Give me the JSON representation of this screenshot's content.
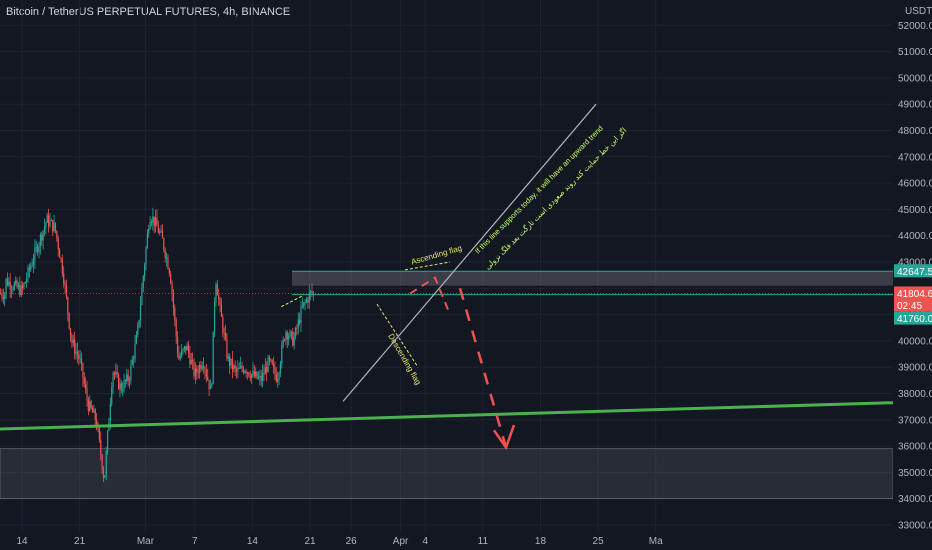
{
  "chart_data": {
    "type": "candlestick",
    "title": "Bitcoin / TetherUS PERPETUAL FUTURES, 4h, BINANCE",
    "currency": "USDT",
    "y_ticks": [
      "52000.0",
      "51000.0",
      "50000.0",
      "49000.0",
      "48000.0",
      "47000.0",
      "46000.0",
      "45000.0",
      "44000.0",
      "43000.0",
      "42000.0",
      "41000.0",
      "40000.0",
      "39000.0",
      "38000.0",
      "37000.0",
      "36000.0",
      "35000.0",
      "34000.0",
      "33000.0"
    ],
    "x_ticks": [
      "14",
      "21",
      "Mar",
      "7",
      "14",
      "21",
      "26",
      "Apr",
      "4",
      "11",
      "18",
      "25",
      "Ma"
    ],
    "ylim": [
      33000,
      52500
    ],
    "price_labels": {
      "upper_zone": "42647.5",
      "current": "41804.6",
      "countdown": "02:45",
      "lower_zone": "41760.0"
    },
    "annotations": {
      "ascending_flag": "Ascending flag",
      "descending_flag": "Descending flag",
      "note_line1": "If this line supports today, it will have an upward trend",
      "note_line2": "اگر این خط حمایت کند روند صعودی است تارگت بعد فلگ نزولی"
    },
    "colors": {
      "up": "#26a69a",
      "down": "#ef5350",
      "support_line": "#4caf50",
      "trend_line": "#b2b5be",
      "zone_line": "#26a69a",
      "arrow": "#ef5350",
      "flag_label": "#e6e66b",
      "note": "#c6ff6b",
      "background": "#131722"
    },
    "ohlc_key_points": [
      {
        "date": "Feb 12",
        "close": 42300
      },
      {
        "date": "Feb 16",
        "close": 44600
      },
      {
        "date": "Feb 20",
        "close": 40000
      },
      {
        "date": "Feb 22",
        "close": 37600
      },
      {
        "date": "Feb 24",
        "close": 34700
      },
      {
        "date": "Feb 25",
        "close": 38900
      },
      {
        "date": "Feb 28",
        "close": 43300
      },
      {
        "date": "Mar 1",
        "close": 44600
      },
      {
        "date": "Mar 2",
        "close": 44400
      },
      {
        "date": "Mar 5",
        "close": 39300
      },
      {
        "date": "Mar 7",
        "close": 38500
      },
      {
        "date": "Mar 9",
        "close": 42500
      },
      {
        "date": "Mar 10",
        "close": 39300
      },
      {
        "date": "Mar 14",
        "close": 38500
      },
      {
        "date": "Mar 15",
        "close": 38700
      },
      {
        "date": "Mar 16",
        "close": 40400
      },
      {
        "date": "Mar 18",
        "close": 41200
      },
      {
        "date": "Mar 19",
        "close": 41800
      },
      {
        "date": "Mar 20",
        "close": 41804.6
      }
    ]
  }
}
